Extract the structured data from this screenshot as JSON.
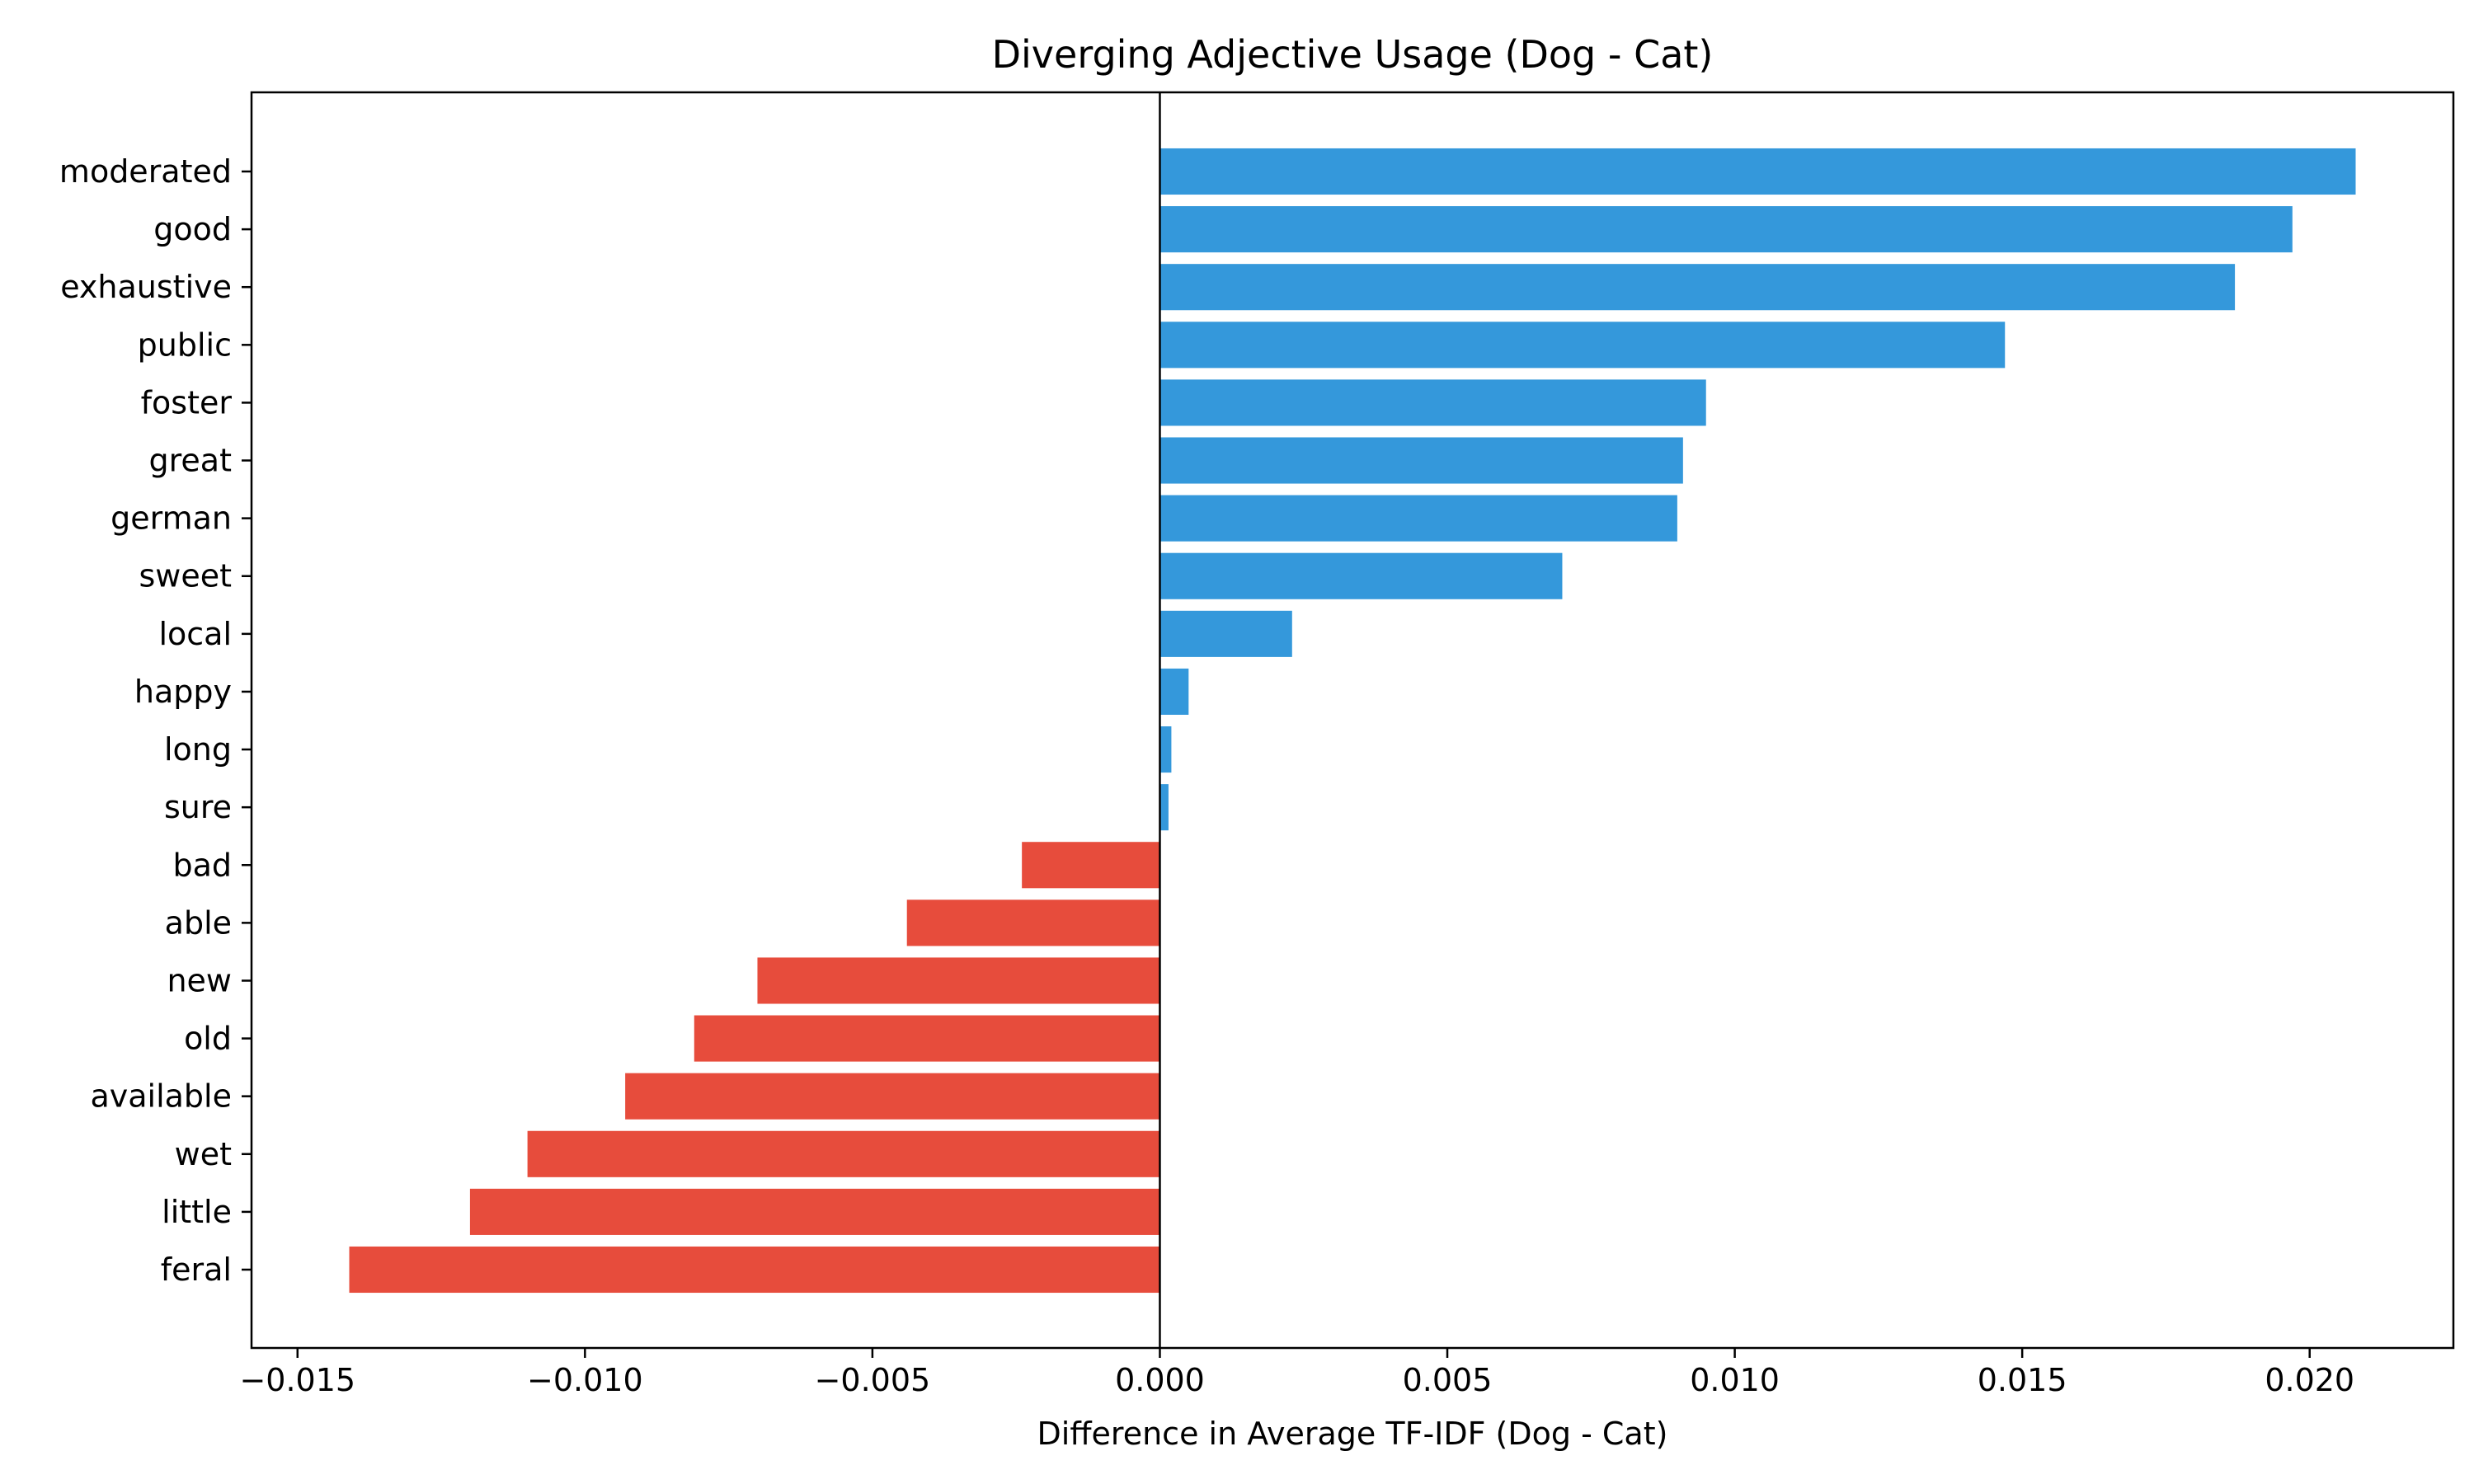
{
  "chart_data": {
    "type": "bar",
    "orientation": "horizontal",
    "title": "Diverging Adjective Usage (Dog - Cat)",
    "xlabel": "Difference in Average TF-IDF (Dog - Cat)",
    "ylabel": "",
    "xlim": [
      -0.0158,
      0.0225
    ],
    "xticks": [
      -0.015,
      -0.01,
      -0.005,
      0.0,
      0.005,
      0.01,
      0.015,
      0.02
    ],
    "xtick_labels": [
      "−0.015",
      "−0.010",
      "−0.005",
      "0.000",
      "0.005",
      "0.010",
      "0.015",
      "0.020"
    ],
    "categories": [
      "moderated",
      "good",
      "exhaustive",
      "public",
      "foster",
      "great",
      "german",
      "sweet",
      "local",
      "happy",
      "long",
      "sure",
      "bad",
      "able",
      "new",
      "old",
      "available",
      "wet",
      "little",
      "feral"
    ],
    "values": [
      0.0208,
      0.0197,
      0.0187,
      0.0147,
      0.0095,
      0.0091,
      0.009,
      0.007,
      0.0023,
      0.0005,
      0.0002,
      0.00015,
      -0.0024,
      -0.0044,
      -0.007,
      -0.0081,
      -0.0093,
      -0.011,
      -0.012,
      -0.0141
    ],
    "colors": {
      "positive": "#3498db",
      "negative": "#e74c3c"
    },
    "grid": false,
    "legend": "none",
    "zero_line": true
  }
}
